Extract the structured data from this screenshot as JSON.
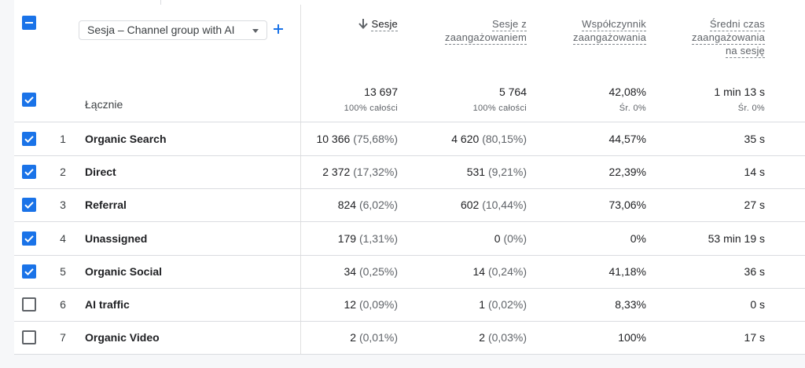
{
  "dimension": {
    "label": "Sesja – Channel group with AI"
  },
  "columns": [
    {
      "label": "Sesje"
    },
    {
      "label_lines": [
        "Sesje z",
        "zaangażowaniem"
      ]
    },
    {
      "label_lines": [
        "Współczynnik",
        "zaangażowania"
      ]
    },
    {
      "label_lines": [
        "Średni czas",
        "zaangażowania",
        "na sesję"
      ]
    }
  ],
  "totals": {
    "label": "Łącznie",
    "values": [
      "13 697",
      "5 764",
      "42,08%",
      "1 min 13 s"
    ],
    "subs": [
      "100% całości",
      "100% całości",
      "Śr. 0%",
      "Śr. 0%"
    ]
  },
  "rows": [
    {
      "idx": "1",
      "name": "Organic Search",
      "checked": true,
      "sessions": "10 366",
      "sessions_pct": "(75,68%)",
      "engaged": "4 620",
      "engaged_pct": "(80,15%)",
      "rate": "44,57%",
      "time": "35 s"
    },
    {
      "idx": "2",
      "name": "Direct",
      "checked": true,
      "sessions": "2 372",
      "sessions_pct": "(17,32%)",
      "engaged": "531",
      "engaged_pct": "(9,21%)",
      "rate": "22,39%",
      "time": "14 s"
    },
    {
      "idx": "3",
      "name": "Referral",
      "checked": true,
      "sessions": "824",
      "sessions_pct": "(6,02%)",
      "engaged": "602",
      "engaged_pct": "(10,44%)",
      "rate": "73,06%",
      "time": "27 s"
    },
    {
      "idx": "4",
      "name": "Unassigned",
      "checked": true,
      "sessions": "179",
      "sessions_pct": "(1,31%)",
      "engaged": "0",
      "engaged_pct": "(0%)",
      "rate": "0%",
      "time": "53 min 19 s"
    },
    {
      "idx": "5",
      "name": "Organic Social",
      "checked": true,
      "sessions": "34",
      "sessions_pct": "(0,25%)",
      "engaged": "14",
      "engaged_pct": "(0,24%)",
      "rate": "41,18%",
      "time": "36 s"
    },
    {
      "idx": "6",
      "name": "AI traffic",
      "checked": false,
      "sessions": "12",
      "sessions_pct": "(0,09%)",
      "engaged": "1",
      "engaged_pct": "(0,02%)",
      "rate": "8,33%",
      "time": "0 s"
    },
    {
      "idx": "7",
      "name": "Organic Video",
      "checked": false,
      "sessions": "2",
      "sessions_pct": "(0,01%)",
      "engaged": "2",
      "engaged_pct": "(0,03%)",
      "rate": "100%",
      "time": "17 s"
    }
  ],
  "colors": {
    "accent": "#1a73e8",
    "border": "#dadce0",
    "muted": "#5f6368"
  },
  "icons": {
    "select_all": "minus-checkbox-icon",
    "add": "plus-icon",
    "sort": "arrow-down-icon",
    "dropdown": "caret-down-icon"
  }
}
